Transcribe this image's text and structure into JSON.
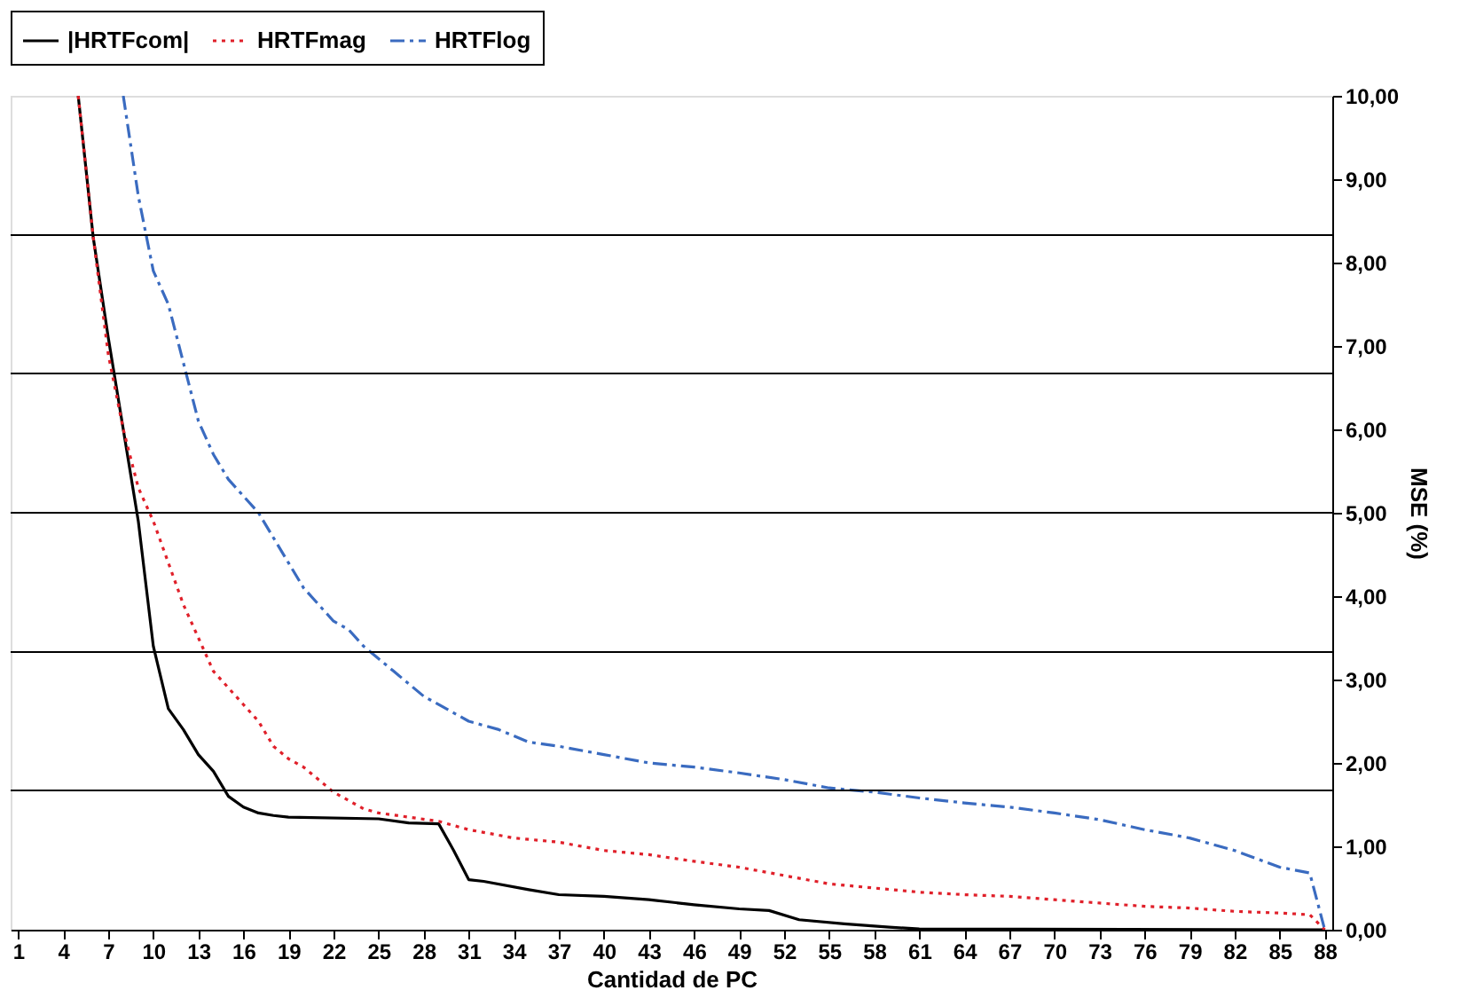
{
  "chart_data": {
    "type": "line",
    "xlabel": "Cantidad de PC",
    "ylabel": "MSE (%)",
    "xlim": [
      0.5,
      88.5
    ],
    "xticks": [
      1,
      4,
      7,
      10,
      13,
      16,
      19,
      22,
      25,
      28,
      31,
      34,
      37,
      40,
      43,
      46,
      49,
      52,
      55,
      58,
      61,
      64,
      67,
      70,
      73,
      76,
      79,
      82,
      85,
      88
    ],
    "ylim": [
      0,
      10
    ],
    "yticks": [
      {
        "value": 0,
        "label": "0,00"
      },
      {
        "value": 1,
        "label": "1,00"
      },
      {
        "value": 2,
        "label": "2,00"
      },
      {
        "value": 3,
        "label": "3,00"
      },
      {
        "value": 4,
        "label": "4,00"
      },
      {
        "value": 5,
        "label": "5,00"
      },
      {
        "value": 6,
        "label": "6,00"
      },
      {
        "value": 7,
        "label": "7,00"
      },
      {
        "value": 8,
        "label": "8,00"
      },
      {
        "value": 9,
        "label": "9,00"
      },
      {
        "value": 10,
        "label": "10,00"
      }
    ],
    "grid": false,
    "legend": "top",
    "marker": "none",
    "ref_lines": [
      {
        "axis": "y",
        "value": 1.67,
        "label": null,
        "color": "#000000"
      },
      {
        "axis": "y",
        "value": 3.33,
        "label": null,
        "color": "#000000"
      },
      {
        "axis": "y",
        "value": 5,
        "label": null,
        "color": "#000000"
      },
      {
        "axis": "y",
        "value": 6.67,
        "label": null,
        "color": "#000000"
      },
      {
        "axis": "y",
        "value": 8.33,
        "label": null,
        "color": "#000000"
      }
    ],
    "series": [
      {
        "name": "|HRTFcom|",
        "color": "#000000",
        "line_style": "solid",
        "x": [
          5,
          6,
          7,
          8,
          9,
          10,
          11,
          12,
          13,
          14,
          15,
          16,
          17,
          18,
          19,
          25,
          27,
          29,
          30,
          31,
          32,
          35,
          37,
          40,
          43,
          46,
          49,
          51,
          53,
          56,
          59,
          61,
          88
        ],
        "values": [
          10,
          8.3,
          7.1,
          6.0,
          4.9,
          3.4,
          2.65,
          2.4,
          2.1,
          1.9,
          1.6,
          1.47,
          1.4,
          1.37,
          1.35,
          1.33,
          1.28,
          1.27,
          0.95,
          0.6,
          0.58,
          0.48,
          0.42,
          0.4,
          0.36,
          0.3,
          0.25,
          0.23,
          0.12,
          0.07,
          0.03,
          0.01,
          0
        ]
      },
      {
        "name": "HRTFmag",
        "color": "#e0202a",
        "line_style": "dotted",
        "x": [
          5,
          6,
          7,
          8,
          9,
          10,
          11,
          12,
          13,
          14,
          15,
          16,
          17,
          18,
          19,
          20,
          21,
          22,
          23,
          24,
          25,
          27,
          29,
          31,
          34,
          37,
          40,
          43,
          46,
          49,
          52,
          55,
          58,
          61,
          64,
          67,
          70,
          73,
          76,
          79,
          82,
          85,
          87,
          88
        ],
        "values": [
          10,
          8.3,
          6.9,
          6.0,
          5.3,
          4.9,
          4.4,
          3.9,
          3.5,
          3.1,
          2.9,
          2.7,
          2.5,
          2.2,
          2.05,
          1.95,
          1.8,
          1.65,
          1.55,
          1.45,
          1.4,
          1.35,
          1.3,
          1.2,
          1.1,
          1.05,
          0.95,
          0.9,
          0.82,
          0.75,
          0.65,
          0.55,
          0.5,
          0.45,
          0.42,
          0.4,
          0.36,
          0.32,
          0.28,
          0.26,
          0.22,
          0.2,
          0.18,
          0
        ]
      },
      {
        "name": "HRTFlog",
        "color": "#3a6bc0",
        "line_style": "dashed",
        "x": [
          8,
          9,
          10,
          11,
          12,
          13,
          14,
          15,
          16,
          17,
          18,
          19,
          20,
          21,
          22,
          23,
          24,
          25,
          26,
          27,
          28,
          29,
          31,
          33,
          35,
          37,
          40,
          43,
          46,
          49,
          52,
          55,
          58,
          61,
          64,
          67,
          70,
          73,
          76,
          79,
          82,
          85,
          87,
          88
        ],
        "values": [
          10,
          8.8,
          7.9,
          7.5,
          6.8,
          6.1,
          5.7,
          5.4,
          5.2,
          5.0,
          4.7,
          4.4,
          4.1,
          3.9,
          3.7,
          3.6,
          3.4,
          3.25,
          3.1,
          2.95,
          2.8,
          2.7,
          2.5,
          2.4,
          2.25,
          2.2,
          2.1,
          2.0,
          1.95,
          1.88,
          1.8,
          1.7,
          1.65,
          1.58,
          1.52,
          1.47,
          1.4,
          1.32,
          1.2,
          1.1,
          0.95,
          0.75,
          0.68,
          0
        ]
      }
    ]
  }
}
